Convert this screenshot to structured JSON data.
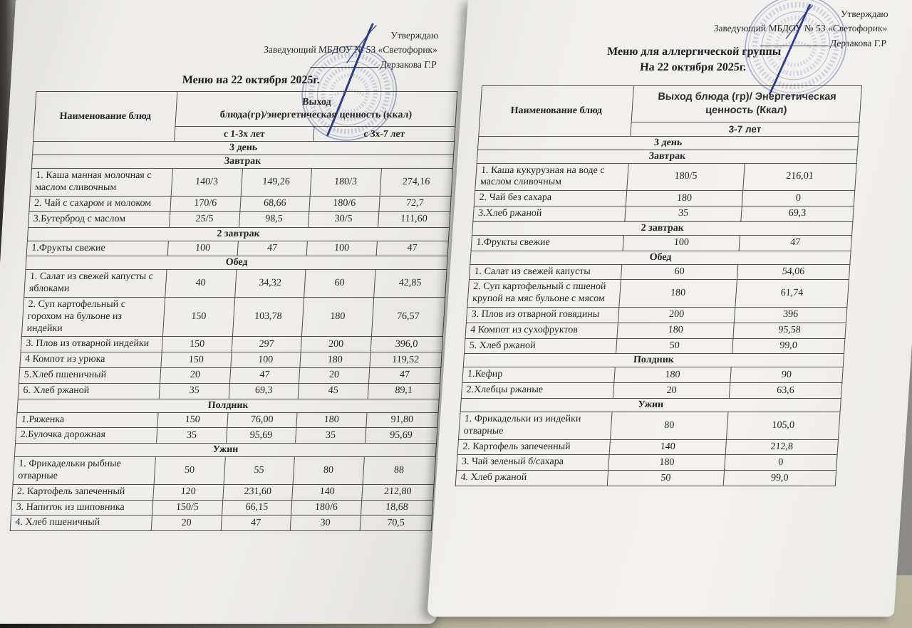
{
  "colors": {
    "stamp_blue": "#4f63b8",
    "ink_blue": "#2a3a8e",
    "paper": "#efeeeb"
  },
  "left_page": {
    "approval": {
      "line1": "Утверждаю",
      "line2": "Заведующий МБДОУ № 53 «Светофорик»",
      "line3": "Дерзакова Г.Р"
    },
    "title": "Меню на 22 октября 2025г.",
    "table": {
      "col_name": "Наименование блюд",
      "col_group": "Выход\nблюда(гр)/энергетическая ценность (ккал)",
      "sub_cols": [
        "с 1-3х лет",
        "с 3х-7 лет"
      ],
      "day": "3 день",
      "sections": [
        {
          "label": "Завтрак",
          "rows": [
            {
              "name": "1. Каша манная молочная с маслом сливочным",
              "v": [
                "140/3",
                "149,26",
                "180/3",
                "274,16"
              ]
            },
            {
              "name": "2. Чай с сахаром и молоком",
              "v": [
                "170/6",
                "68,66",
                "180/6",
                "72,7"
              ]
            },
            {
              "name": "3.Бутерброд с маслом",
              "v": [
                "25/5",
                "98,5",
                "30/5",
                "111,60"
              ]
            }
          ]
        },
        {
          "label": "2  завтрак",
          "rows": [
            {
              "name": "1.Фрукты свежие",
              "v": [
                "100",
                "47",
                "100",
                "47"
              ]
            }
          ]
        },
        {
          "label": "Обед",
          "rows": [
            {
              "name": "1. Салат из свежей  капусты с яблоками",
              "v": [
                "40",
                "34,32",
                "60",
                "42,85"
              ]
            },
            {
              "name": "2. Суп картофельный с горохом на бульоне из индейки",
              "v": [
                "150",
                "103,78",
                "180",
                "76,57"
              ]
            },
            {
              "name": "3. Плов из отварной индейки",
              "v": [
                "150",
                "297",
                "200",
                "396,0"
              ]
            },
            {
              "name": "4 Компот из урюка",
              "v": [
                "150",
                "100",
                "180",
                "119,52"
              ]
            },
            {
              "name": "5.Хлеб пшеничный",
              "v": [
                "20",
                "47",
                "20",
                "47"
              ]
            },
            {
              "name": "6. Хлеб ржаной",
              "v": [
                "35",
                "69,3",
                "45",
                "89,1"
              ]
            }
          ]
        },
        {
          "label": "Полдник",
          "rows": [
            {
              "name": "1.Ряженка",
              "v": [
                "150",
                "76,00",
                "180",
                "91,80"
              ]
            },
            {
              "name": "2.Булочка дорожная",
              "v": [
                "35",
                "95,69",
                "35",
                "95,69"
              ]
            }
          ]
        },
        {
          "label": "Ужин",
          "rows": [
            {
              "name": "1. Фрикадельки рыбные отварные",
              "v": [
                "50",
                "55",
                "80",
                "88"
              ]
            },
            {
              "name": "2. Картофель запеченный",
              "v": [
                "120",
                "231,60",
                "140",
                "212,80"
              ]
            },
            {
              "name": "3. Напиток из шиповника",
              "v": [
                "150/5",
                "66,15",
                "180/6",
                "18,68"
              ]
            },
            {
              "name": "4. Хлеб пшеничный",
              "v": [
                "20",
                "47",
                "30",
                "70,5"
              ]
            }
          ]
        }
      ]
    }
  },
  "right_page": {
    "approval": {
      "line1": "Утверждаю",
      "line2": "Заведующий МБДОУ № 53 «Светофорик»",
      "line3": "Дерзакова Г.Р"
    },
    "title_line1": "Меню для аллергической группы",
    "title_line2": "На 22 октября 2025г.",
    "table": {
      "col_name": "Наименование блюд",
      "col_group": "Выход блюда (гр)/ Энергетическая ценность (Ккал)",
      "sub_cols": [
        "3-7 лет"
      ],
      "day": "3 день",
      "sections": [
        {
          "label": "Завтрак",
          "rows": [
            {
              "name": "1. Каша кукурузная на воде с маслом сливочным",
              "v": [
                "180/5",
                "216,01"
              ]
            },
            {
              "name": "2. Чай без сахара",
              "v": [
                "180",
                "0"
              ]
            },
            {
              "name": "3.Хлеб ржаной",
              "v": [
                "35",
                "69,3"
              ]
            }
          ]
        },
        {
          "label": "2 завтрак",
          "rows": [
            {
              "name": "1.Фрукты свежие",
              "v": [
                "100",
                "47"
              ]
            }
          ]
        },
        {
          "label": "Обед",
          "rows": [
            {
              "name": "1. Салат из свежей капусты",
              "v": [
                "60",
                "54,06"
              ]
            },
            {
              "name": "2. Суп картофельный с пшеной крупой на мяс бульоне с мясом",
              "v": [
                "180",
                "61,74"
              ]
            },
            {
              "name": "3. Плов из отварной говядины",
              "v": [
                "200",
                "396"
              ]
            },
            {
              "name": "4 Компот из сухофруктов",
              "v": [
                "180",
                "95,58"
              ]
            },
            {
              "name": "5. Хлеб ржаной",
              "v": [
                "50",
                "99,0"
              ]
            }
          ]
        },
        {
          "label": "Полдник",
          "rows": [
            {
              "name": "1.Кефир",
              "v": [
                "180",
                "90"
              ]
            },
            {
              "name": "2.Хлебцы ржаные",
              "v": [
                "20",
                "63,6"
              ]
            }
          ]
        },
        {
          "label": "Ужин",
          "rows": [
            {
              "name": "1. Фрикадельки из индейки отварные",
              "v": [
                "80",
                "105,0"
              ]
            },
            {
              "name": "2. Картофель запеченный",
              "v": [
                "140",
                "212,8"
              ]
            },
            {
              "name": "3. Чай зеленый б/сахара",
              "v": [
                "180",
                "0"
              ]
            },
            {
              "name": "4. Хлеб ржаной",
              "v": [
                "50",
                "99,0"
              ]
            }
          ]
        }
      ]
    }
  }
}
